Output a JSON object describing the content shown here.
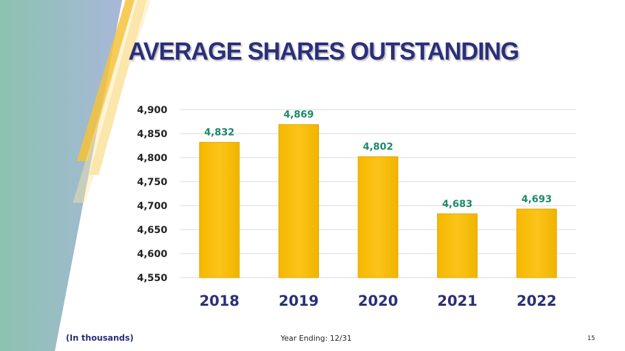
{
  "slide": {
    "title": "AVERAGE SHARES OUTSTANDING",
    "footnote": "(In thousands)",
    "year_ending": "Year Ending: 12/31",
    "page_number": "15"
  },
  "colors": {
    "title": "#2b2f7a",
    "bar": "#fcc419",
    "bar_edge": "#e0a800",
    "value_label": "#1a8a6b",
    "category_label": "#2b2f7a",
    "tick_label": "#222222",
    "gridline": "#d9d9d9",
    "teal_left": "#8cc2b0",
    "blue_right": "#a7b8d8"
  },
  "chart_data": {
    "type": "bar",
    "title": "AVERAGE SHARES OUTSTANDING",
    "xlabel": "",
    "ylabel": "",
    "unit_note": "(In thousands)",
    "categories": [
      "2018",
      "2019",
      "2020",
      "2021",
      "2022"
    ],
    "values": [
      4832,
      4869,
      4802,
      4683,
      4693
    ],
    "value_labels": [
      "4,832",
      "4,869",
      "4,802",
      "4,683",
      "4,693"
    ],
    "ylim": [
      4550,
      4900
    ],
    "yticks": [
      4550,
      4600,
      4650,
      4700,
      4750,
      4800,
      4850,
      4900
    ],
    "ytick_labels": [
      "4,550",
      "4,600",
      "4,650",
      "4,700",
      "4,750",
      "4,800",
      "4,850",
      "4,900"
    ],
    "grid": true,
    "legend": "none"
  }
}
